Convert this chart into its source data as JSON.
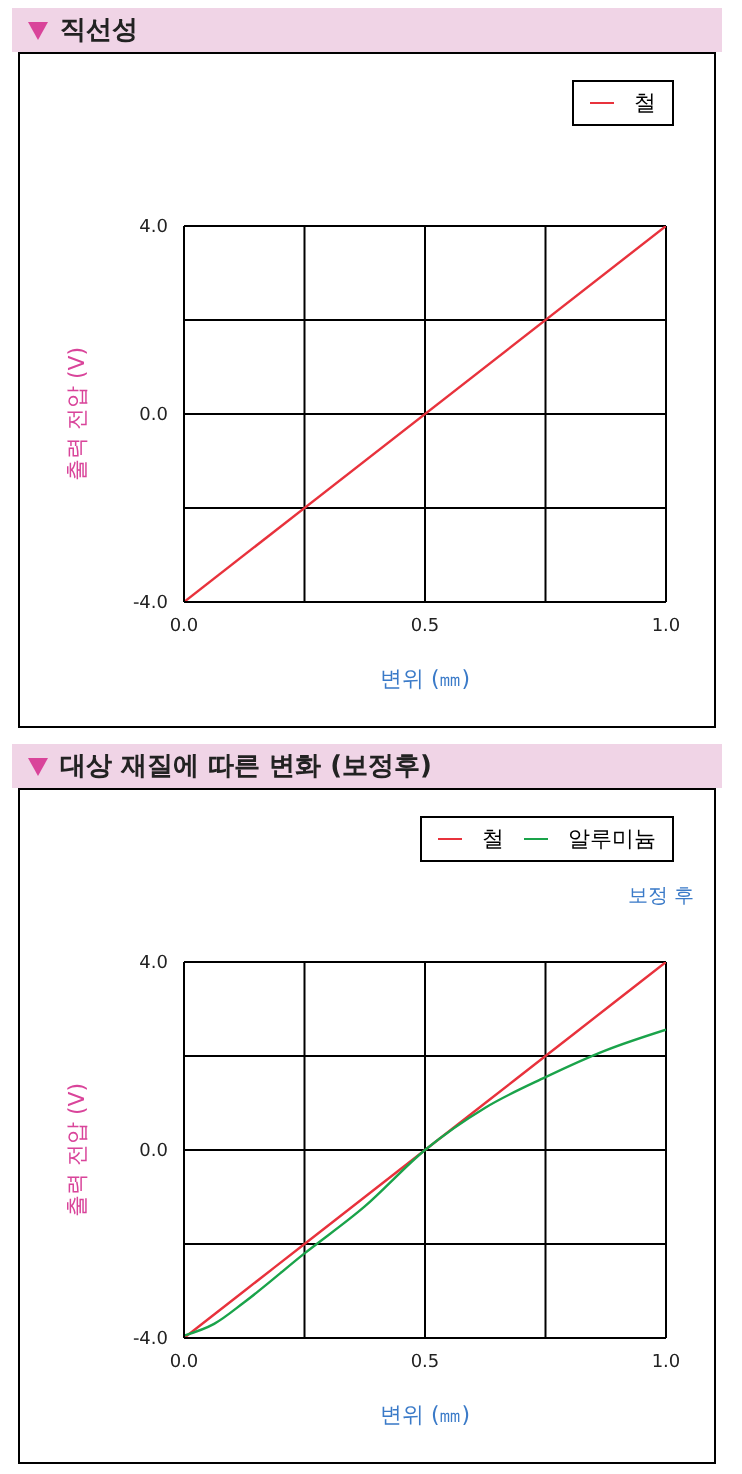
{
  "chart_data": [
    {
      "type": "line",
      "title": "직선성",
      "xlabel": "변위 (㎜)",
      "ylabel": "출력 전압 (V)",
      "x": [
        0,
        1
      ],
      "series": [
        {
          "name": "철",
          "color": "#e8323c",
          "values": [
            -4,
            4
          ]
        }
      ],
      "xlim": [
        0,
        1
      ],
      "xticks": [
        {
          "value": 0,
          "label": "0.0"
        },
        {
          "value": 0.25,
          "label": null
        },
        {
          "value": 0.5,
          "label": "0.5"
        },
        {
          "value": 0.75,
          "label": null
        },
        {
          "value": 1,
          "label": "1.0"
        }
      ],
      "ylim": [
        -4,
        4
      ],
      "yticks": [
        {
          "value": -4,
          "label": "-4.0"
        },
        {
          "value": -2,
          "label": null
        },
        {
          "value": 0,
          "label": "0.0"
        },
        {
          "value": 2,
          "label": null
        },
        {
          "value": 4,
          "label": "4.0"
        }
      ],
      "grid": true,
      "legend": "top right",
      "marker": "none",
      "line_style": "solid"
    },
    {
      "type": "line",
      "title": "대상 재질에 따른 변화 (보정후)",
      "xlabel": "변위 (㎜)",
      "ylabel": "출력 전압 (V)",
      "annotations": [
        "보정 후"
      ],
      "x": [
        0,
        0.0625,
        0.125,
        0.25,
        0.375,
        0.5,
        0.625,
        0.75,
        0.875,
        1
      ],
      "series": [
        {
          "name": "철",
          "color": "#e8323c",
          "values": [
            -4,
            -3.5,
            -3,
            -2,
            -1,
            0,
            1,
            2,
            3,
            4
          ]
        },
        {
          "name": "알루미늄",
          "color": "#1aa34a",
          "values": [
            -3.95,
            -3.7,
            -3.24,
            -2.2,
            -1.2,
            0,
            0.9,
            1.55,
            2.12,
            2.56
          ]
        }
      ],
      "xlim": [
        0,
        1
      ],
      "xticks": [
        {
          "value": 0,
          "label": "0.0"
        },
        {
          "value": 0.25,
          "label": null
        },
        {
          "value": 0.5,
          "label": "0.5"
        },
        {
          "value": 0.75,
          "label": null
        },
        {
          "value": 1,
          "label": "1.0"
        }
      ],
      "ylim": [
        -4,
        4
      ],
      "yticks": [
        {
          "value": -4,
          "label": "-4.0"
        },
        {
          "value": -2,
          "label": null
        },
        {
          "value": 0,
          "label": "0.0"
        },
        {
          "value": 2,
          "label": null
        },
        {
          "value": 4,
          "label": "4.0"
        }
      ],
      "grid": true,
      "legend": "top right",
      "marker": "none",
      "line_style": "solid"
    }
  ]
}
